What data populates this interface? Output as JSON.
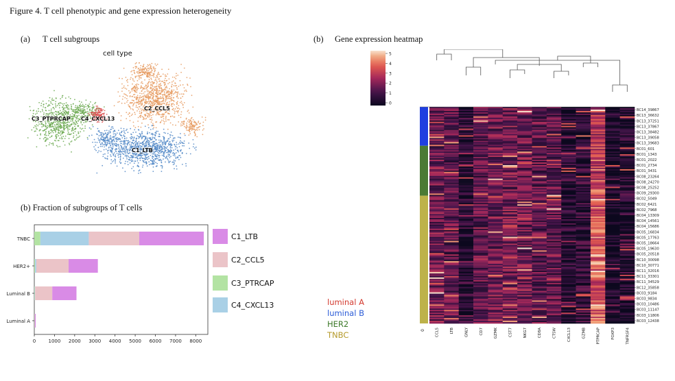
{
  "figure_title": "Figure 4. T cell phenotypic and gene expression heterogeneity",
  "panel_a": {
    "label": "(a)",
    "title": "T cell subgroups",
    "plot_title": "cell type",
    "clusters": [
      {
        "name": "C2_CCL5",
        "color": "#e69a5f"
      },
      {
        "name": "C3_PTPRCAP",
        "color": "#6aa84f"
      },
      {
        "name": "C4_CXCL13",
        "color": "#d94848"
      },
      {
        "name": "C1_LTB",
        "color": "#4f86c6"
      }
    ]
  },
  "panel_b_bar": {
    "title": "(b) Fraction of subgroups of T cells",
    "legend": [
      {
        "name": "C1_LTB",
        "color": "#d98be6"
      },
      {
        "name": "C2_CCL5",
        "color": "#ebc4c8"
      },
      {
        "name": "C3_PTRCAP",
        "color": "#b3e3a3"
      },
      {
        "name": "C4_CXCL13",
        "color": "#a9d0e6"
      }
    ]
  },
  "chart_data": [
    {
      "type": "bar",
      "orientation": "horizontal",
      "stacked": true,
      "categories": [
        "TNBC",
        "HER2+",
        "Luminal B",
        "Luminal A"
      ],
      "series": [
        {
          "name": "C3_PTRCAP",
          "color": "#b3e3a3",
          "values": [
            300,
            40,
            20,
            5
          ]
        },
        {
          "name": "C4_CXCL13",
          "color": "#a9d0e6",
          "values": [
            2400,
            60,
            20,
            5
          ]
        },
        {
          "name": "C2_CCL5",
          "color": "#ebc4c8",
          "values": [
            2500,
            1600,
            850,
            20
          ]
        },
        {
          "name": "C1_LTB",
          "color": "#d98be6",
          "values": [
            3200,
            1450,
            1200,
            40
          ]
        }
      ],
      "xticks": [
        0,
        1000,
        2000,
        3000,
        4000,
        5000,
        6000,
        7000,
        8000
      ],
      "xlim": [
        0,
        8600
      ]
    },
    {
      "type": "heatmap",
      "genes": [
        "CCL5",
        "LTB",
        "GNLY",
        "CD7",
        "GZMK",
        "CST7",
        "NKG7",
        "CD8A",
        "CTSW",
        "CXCL13",
        "GZMB",
        "PTPRCAP",
        "FOXP3",
        "TNFRSF4"
      ],
      "row_labels": [
        "BC14_39867",
        "BC13_36632",
        "BC13_37251",
        "BC13_37867",
        "BC13_38482",
        "BC13_39058",
        "BC13_39683",
        "BC01_601",
        "BC01_1343",
        "BC01_2022",
        "BC01_2734",
        "BC01_3431",
        "BC08_23264",
        "BC08_24270",
        "BC08_25252",
        "BC09_29300",
        "BC02_5049",
        "BC02_6421",
        "BC02_7968",
        "BC04_13309",
        "BC04_14561",
        "BC04_15686",
        "BC05_16834",
        "BC05_17763",
        "BC05_18664",
        "BC05_19630",
        "BC05_20518",
        "BC10_30098",
        "BC10_30771",
        "BC11_32016",
        "BC11_33301",
        "BC11_34529",
        "BC12_35858",
        "BC03_9184",
        "BC03_9834",
        "BC03_10486",
        "BC03_11147",
        "BC03_11806",
        "BC03_12438"
      ],
      "colorbar_ticks": [
        "5",
        "4",
        "3",
        "2",
        "1",
        "0"
      ],
      "row_colors": [
        {
          "group": "luminal B",
          "color": "#1f3fe0",
          "rows": 7
        },
        {
          "group": "HER2",
          "color": "#4b7a34",
          "rows": 9
        },
        {
          "group": "TNBC",
          "color": "#bdb24a",
          "rows": 23
        }
      ],
      "row_color_axis_label": "0"
    }
  ],
  "panel_b_heatmap": {
    "label": "(b)",
    "title": "Gene expression heatmap"
  },
  "subtype_legend": [
    {
      "name": "luminal A",
      "color": "#d33a2f"
    },
    {
      "name": "luminal B",
      "color": "#2a5bd7"
    },
    {
      "name": "HER2",
      "color": "#3d7a2a"
    },
    {
      "name": "TNBC",
      "color": "#b59a2a"
    }
  ]
}
